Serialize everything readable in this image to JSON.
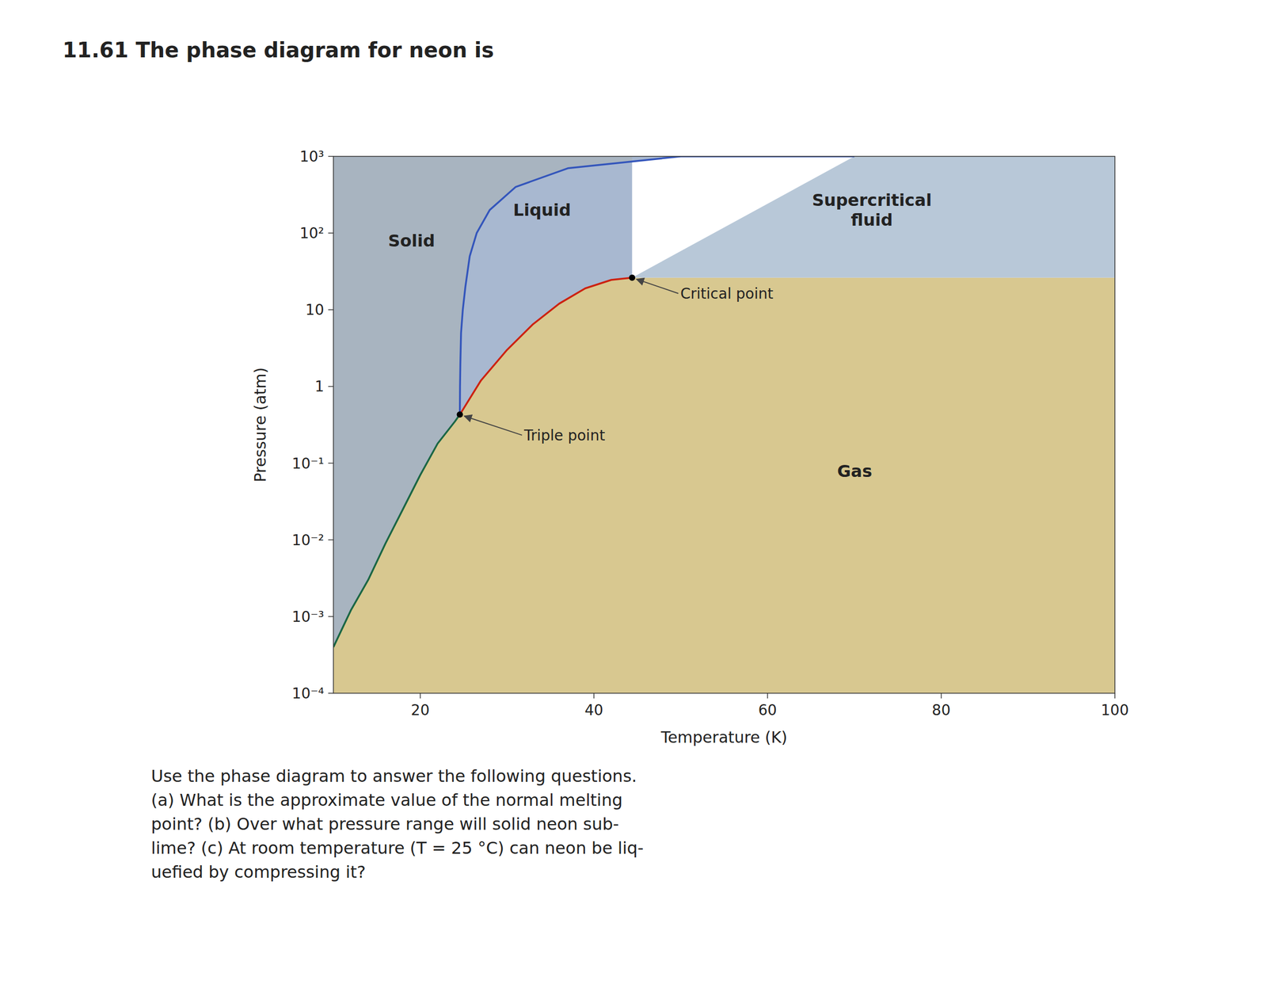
{
  "chart_data": {
    "type": "line",
    "title": "11.61  The phase diagram for neon is",
    "caption": "Use the phase diagram to answer the following questions.\n(a) What is the approximate value of the normal melting\npoint? (b) Over what pressure range will solid neon sub-\nlime? (c) At room temperature (T = 25 °C) can neon be liq-\nuefied by compressing it?",
    "x_label": "Temperature (K)",
    "y_label": "Pressure (atm)",
    "log": "y",
    "grid": false,
    "xlim": [
      10,
      100
    ],
    "xticks": [
      20,
      40,
      60,
      80,
      100
    ],
    "ylim": [
      0.0001,
      1000
    ],
    "yticks": [
      {
        "value": 0.0001,
        "label": "10⁻⁴"
      },
      {
        "value": 0.001,
        "label": "10⁻³"
      },
      {
        "value": 0.01,
        "label": "10⁻²"
      },
      {
        "value": 0.1,
        "label": "10⁻¹"
      },
      1,
      10,
      {
        "value": 100,
        "label": "10²"
      },
      {
        "value": 1000,
        "label": "10³"
      }
    ],
    "series": [
      {
        "color": "#1a6644",
        "x": [
          10.0,
          12.0,
          14.0,
          16.0,
          18.0,
          20.0,
          22.0,
          24.0,
          24.56
        ],
        "values": [
          0.0004,
          0.0012,
          0.003,
          0.009,
          0.025,
          0.07,
          0.18,
          0.35,
          0.43
        ]
      },
      {
        "color": "#cc2211",
        "x": [
          24.56,
          27.0,
          30.0,
          33.0,
          36.0,
          39.0,
          42.0,
          44.4
        ],
        "values": [
          0.43,
          1.2,
          3.0,
          6.5,
          12.0,
          19.0,
          24.5,
          26.19
        ]
      },
      {
        "color": "#3355bb",
        "x": [
          24.56,
          24.58,
          24.62,
          24.7,
          24.9,
          25.2,
          25.7,
          26.5,
          28.0,
          31.0,
          37.0,
          50.0,
          70.0
        ],
        "values": [
          0.43,
          1.0,
          2.0,
          5.0,
          10.0,
          20.0,
          50.0,
          100.0,
          200.0,
          400.0,
          700.0,
          1000.0,
          1000.0
        ]
      }
    ],
    "regions": [
      {
        "label": "Gas",
        "color": "#d8c890"
      },
      {
        "label": "Solid",
        "color": "#a8b4c0"
      },
      {
        "label": "Liquid",
        "color": "#a8b8d0"
      },
      {
        "label": "Supercritical\nfluid",
        "color": "#b8c8d8"
      }
    ],
    "annotations": [
      {
        "text": "Triple point",
        "x": 24.56,
        "y": 0.43
      },
      {
        "text": "Critical point",
        "x": 44.4,
        "y": 26.19
      }
    ]
  }
}
